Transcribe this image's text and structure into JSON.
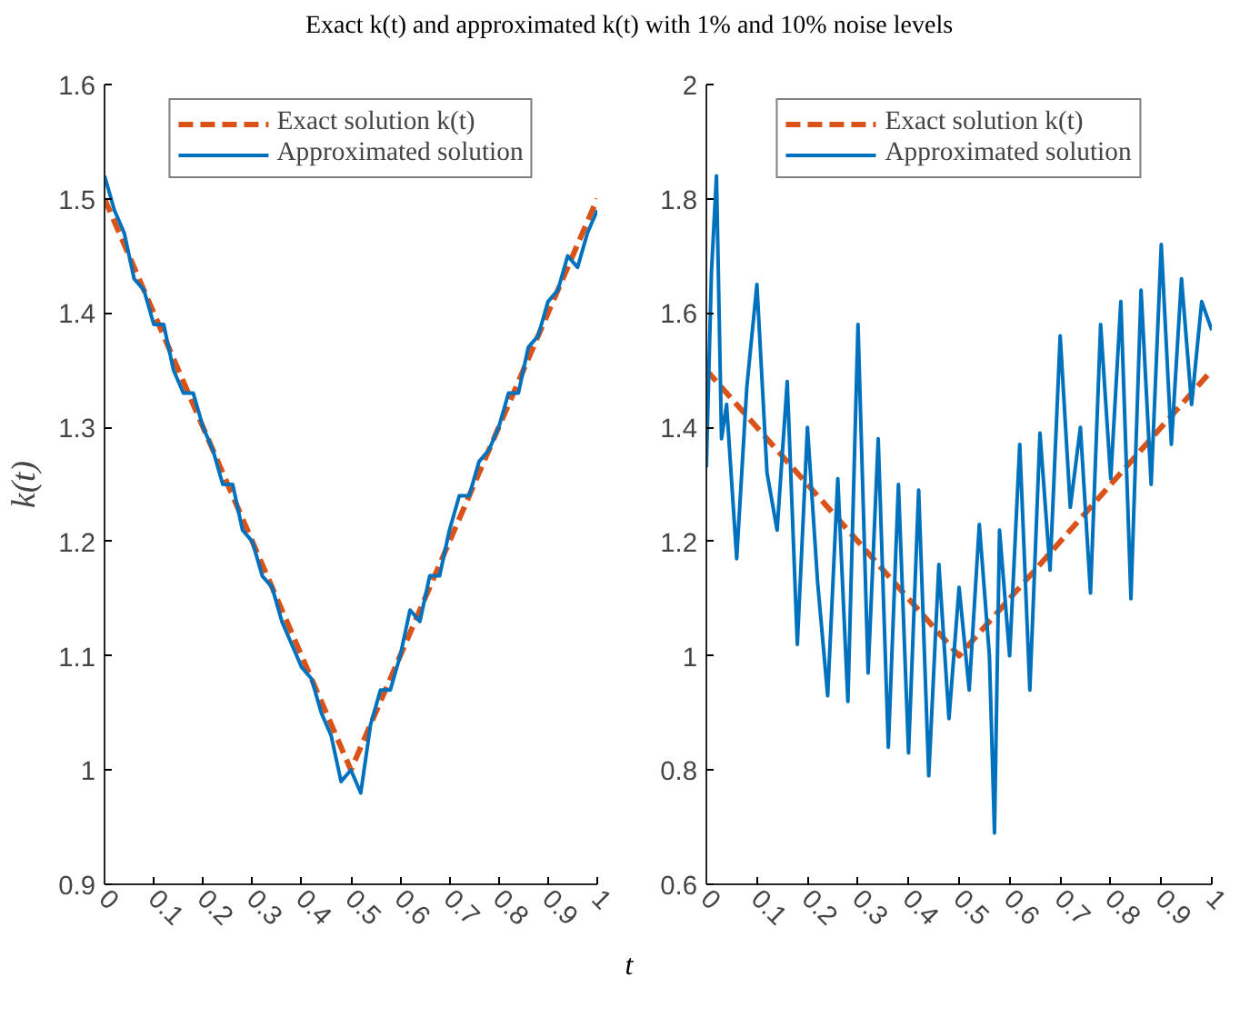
{
  "chart_data": [
    {
      "type": "line",
      "title": "Exact k(t) and approximated k(t) with 1% and 10% noise levels",
      "xlabel": "t",
      "ylabel": "k(t)",
      "xlim": [
        0,
        1
      ],
      "xticks": [
        0,
        0.1,
        0.2,
        0.3,
        0.4,
        0.5,
        0.6,
        0.7,
        0.8,
        0.9,
        1
      ],
      "ylim": [
        0.9,
        1.6
      ],
      "yticks": [
        0.9,
        1,
        1.1,
        1.2,
        1.3,
        1.4,
        1.5,
        1.6
      ],
      "grid": false,
      "legend": "top",
      "series": [
        {
          "name": "Exact solution k(t)",
          "color": "#d95319",
          "line_style": "dashed",
          "x": [
            0,
            0.5,
            1
          ],
          "values": [
            1.5,
            1.0,
            1.5
          ]
        },
        {
          "name": "Approximated solution",
          "color": "#0072bd",
          "line_style": "solid",
          "x": [
            0,
            0.02,
            0.04,
            0.06,
            0.08,
            0.1,
            0.12,
            0.14,
            0.16,
            0.18,
            0.2,
            0.22,
            0.24,
            0.26,
            0.28,
            0.3,
            0.32,
            0.34,
            0.36,
            0.38,
            0.4,
            0.42,
            0.44,
            0.46,
            0.48,
            0.5,
            0.52,
            0.54,
            0.56,
            0.58,
            0.6,
            0.62,
            0.64,
            0.66,
            0.68,
            0.7,
            0.72,
            0.74,
            0.76,
            0.78,
            0.8,
            0.82,
            0.84,
            0.86,
            0.88,
            0.9,
            0.92,
            0.94,
            0.96,
            0.98,
            1.0
          ],
          "values": [
            1.52,
            1.49,
            1.47,
            1.43,
            1.42,
            1.39,
            1.39,
            1.35,
            1.33,
            1.33,
            1.3,
            1.28,
            1.25,
            1.25,
            1.21,
            1.2,
            1.17,
            1.16,
            1.13,
            1.11,
            1.09,
            1.08,
            1.05,
            1.03,
            0.99,
            1.0,
            0.98,
            1.04,
            1.07,
            1.07,
            1.1,
            1.14,
            1.13,
            1.17,
            1.17,
            1.21,
            1.24,
            1.24,
            1.27,
            1.28,
            1.3,
            1.33,
            1.33,
            1.37,
            1.38,
            1.41,
            1.42,
            1.45,
            1.44,
            1.47,
            1.49
          ]
        }
      ]
    },
    {
      "type": "line",
      "xlim": [
        0,
        1
      ],
      "xticks": [
        0,
        0.1,
        0.2,
        0.3,
        0.4,
        0.5,
        0.6,
        0.7,
        0.8,
        0.9,
        1
      ],
      "ylim": [
        0.6,
        2
      ],
      "yticks": [
        0.6,
        0.8,
        1,
        1.2,
        1.4,
        1.6,
        1.8,
        2
      ],
      "grid": false,
      "legend": "top",
      "series": [
        {
          "name": "Exact solution k(t)",
          "color": "#d95319",
          "line_style": "dashed",
          "x": [
            0,
            0.5,
            1
          ],
          "values": [
            1.5,
            1.0,
            1.5
          ]
        },
        {
          "name": "Approximated solution",
          "color": "#0072bd",
          "line_style": "solid",
          "x": [
            0,
            0.01,
            0.02,
            0.03,
            0.04,
            0.06,
            0.08,
            0.1,
            0.12,
            0.14,
            0.16,
            0.18,
            0.2,
            0.22,
            0.24,
            0.26,
            0.28,
            0.3,
            0.32,
            0.34,
            0.36,
            0.38,
            0.4,
            0.42,
            0.44,
            0.46,
            0.48,
            0.5,
            0.52,
            0.54,
            0.56,
            0.57,
            0.58,
            0.6,
            0.62,
            0.64,
            0.66,
            0.68,
            0.7,
            0.72,
            0.74,
            0.76,
            0.78,
            0.8,
            0.82,
            0.84,
            0.86,
            0.88,
            0.9,
            0.92,
            0.94,
            0.96,
            0.98,
            1.0
          ],
          "values": [
            1.33,
            1.67,
            1.84,
            1.38,
            1.44,
            1.17,
            1.47,
            1.65,
            1.32,
            1.22,
            1.48,
            1.02,
            1.4,
            1.13,
            0.93,
            1.31,
            0.92,
            1.58,
            0.97,
            1.38,
            0.84,
            1.3,
            0.83,
            1.29,
            0.79,
            1.16,
            0.89,
            1.12,
            0.94,
            1.23,
            1.0,
            0.69,
            1.22,
            1.0,
            1.37,
            0.94,
            1.39,
            1.15,
            1.56,
            1.26,
            1.4,
            1.11,
            1.58,
            1.31,
            1.62,
            1.1,
            1.64,
            1.3,
            1.72,
            1.37,
            1.66,
            1.44,
            1.62,
            1.57
          ]
        }
      ]
    }
  ]
}
